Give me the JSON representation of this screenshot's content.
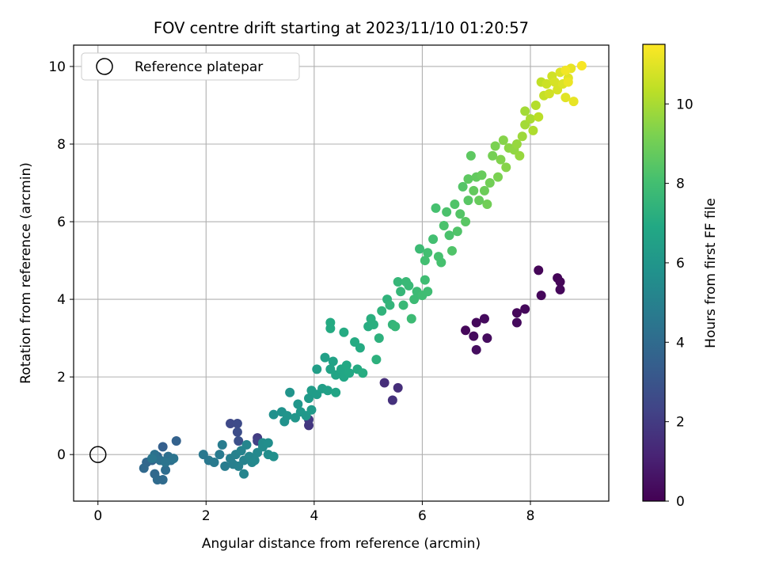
{
  "chart_data": {
    "type": "scatter",
    "title": "FOV centre drift starting at 2023/11/10 01:20:57",
    "xlabel": "Angular distance from reference (arcmin)",
    "ylabel": "Rotation from reference (arcmin)",
    "xlim": [
      -0.45,
      9.45
    ],
    "ylim": [
      -1.2,
      10.55
    ],
    "xticks": [
      0,
      2,
      4,
      6,
      8
    ],
    "yticks": [
      0,
      2,
      4,
      6,
      8,
      10
    ],
    "grid": true,
    "legend": {
      "placement": "top-left",
      "entries": [
        "Reference platepar"
      ]
    },
    "reference_point": {
      "x": 0,
      "y": 0,
      "label": "Reference platepar"
    },
    "colorbar": {
      "label": "Hours from first FF file",
      "colormap": "viridis",
      "range": [
        0,
        11.5
      ],
      "ticks": [
        0,
        2,
        4,
        6,
        8,
        10
      ]
    },
    "points": [
      [
        6.8,
        3.2,
        0.2
      ],
      [
        6.95,
        3.05,
        0.3
      ],
      [
        7.0,
        3.4,
        0.25
      ],
      [
        7.15,
        3.5,
        0.3
      ],
      [
        7.2,
        3.0,
        0.35
      ],
      [
        7.0,
        2.7,
        0.4
      ],
      [
        7.75,
        3.65,
        0.2
      ],
      [
        7.9,
        3.75,
        0.25
      ],
      [
        7.75,
        3.4,
        0.3
      ],
      [
        8.15,
        4.75,
        0.15
      ],
      [
        8.2,
        4.1,
        0.2
      ],
      [
        8.5,
        4.55,
        0.1
      ],
      [
        8.55,
        4.45,
        0.15
      ],
      [
        8.55,
        4.25,
        0.2
      ],
      [
        5.3,
        1.85,
        1.5
      ],
      [
        5.55,
        1.72,
        1.5
      ],
      [
        5.45,
        1.4,
        1.6
      ],
      [
        3.9,
        0.75,
        1.8
      ],
      [
        3.9,
        0.9,
        1.9
      ],
      [
        2.95,
        0.43,
        2.0
      ],
      [
        2.95,
        0.35,
        2.2
      ],
      [
        2.45,
        0.8,
        2.5
      ],
      [
        2.58,
        0.8,
        2.6
      ],
      [
        2.58,
        0.58,
        2.7
      ],
      [
        2.6,
        0.35,
        2.8
      ],
      [
        1.2,
        0.2,
        3.5
      ],
      [
        1.45,
        0.35,
        3.6
      ],
      [
        1.1,
        -0.05,
        3.7
      ],
      [
        1.0,
        -0.15,
        3.7
      ],
      [
        0.9,
        -0.2,
        3.8
      ],
      [
        0.85,
        -0.35,
        3.9
      ],
      [
        1.05,
        -0.5,
        3.9
      ],
      [
        1.2,
        -0.65,
        4.0
      ],
      [
        1.1,
        -0.65,
        4.0
      ],
      [
        1.25,
        -0.4,
        4.1
      ],
      [
        1.35,
        -0.15,
        4.2
      ],
      [
        1.3,
        -0.05,
        4.2
      ],
      [
        1.05,
        0.0,
        4.3
      ],
      [
        1.15,
        -0.15,
        4.3
      ],
      [
        1.25,
        -0.2,
        4.4
      ],
      [
        1.4,
        -0.1,
        4.4
      ],
      [
        1.0,
        -0.1,
        4.5
      ],
      [
        1.95,
        0.0,
        4.6
      ],
      [
        2.05,
        -0.15,
        4.6
      ],
      [
        2.15,
        -0.2,
        4.7
      ],
      [
        2.25,
        0.0,
        4.7
      ],
      [
        2.3,
        0.25,
        4.8
      ],
      [
        2.35,
        -0.3,
        4.8
      ],
      [
        2.45,
        -0.1,
        4.9
      ],
      [
        2.5,
        -0.25,
        4.9
      ],
      [
        2.55,
        0.0,
        5.0
      ],
      [
        2.6,
        -0.3,
        5.0
      ],
      [
        2.65,
        0.1,
        5.1
      ],
      [
        2.7,
        -0.15,
        5.1
      ],
      [
        2.7,
        -0.5,
        5.2
      ],
      [
        2.75,
        0.25,
        5.2
      ],
      [
        2.8,
        -0.05,
        5.3
      ],
      [
        2.85,
        -0.2,
        5.3
      ],
      [
        2.9,
        -0.15,
        5.4
      ],
      [
        2.95,
        0.05,
        5.4
      ],
      [
        3.05,
        0.3,
        5.5
      ],
      [
        3.05,
        0.2,
        5.5
      ],
      [
        3.15,
        0.3,
        5.6
      ],
      [
        3.15,
        0.0,
        5.6
      ],
      [
        3.25,
        -0.05,
        5.7
      ],
      [
        3.25,
        1.03,
        5.7
      ],
      [
        3.4,
        1.1,
        5.8
      ],
      [
        3.45,
        0.85,
        5.8
      ],
      [
        3.5,
        1.0,
        5.9
      ],
      [
        3.55,
        1.6,
        5.9
      ],
      [
        3.65,
        0.95,
        6.0
      ],
      [
        3.7,
        1.3,
        6.0
      ],
      [
        3.75,
        1.1,
        6.1
      ],
      [
        3.85,
        1.0,
        6.1
      ],
      [
        3.95,
        1.15,
        6.2
      ],
      [
        3.9,
        1.45,
        6.2
      ],
      [
        3.95,
        1.65,
        6.3
      ],
      [
        4.05,
        1.55,
        6.3
      ],
      [
        4.05,
        2.2,
        6.4
      ],
      [
        4.15,
        1.7,
        6.4
      ],
      [
        4.2,
        2.5,
        6.5
      ],
      [
        4.25,
        1.65,
        6.5
      ],
      [
        4.3,
        2.2,
        6.6
      ],
      [
        4.35,
        2.4,
        6.6
      ],
      [
        4.4,
        2.05,
        6.7
      ],
      [
        4.4,
        1.6,
        6.7
      ],
      [
        4.5,
        2.2,
        6.8
      ],
      [
        4.55,
        2.0,
        6.8
      ],
      [
        4.6,
        2.3,
        6.9
      ],
      [
        4.65,
        2.1,
        6.9
      ],
      [
        4.75,
        2.9,
        7.0
      ],
      [
        4.8,
        2.2,
        7.0
      ],
      [
        4.85,
        2.75,
        7.0
      ],
      [
        4.9,
        2.1,
        7.1
      ],
      [
        4.3,
        3.25,
        7.0
      ],
      [
        4.3,
        3.4,
        7.0
      ],
      [
        4.55,
        3.15,
        7.0
      ],
      [
        5.0,
        3.3,
        7.1
      ],
      [
        5.05,
        3.5,
        7.2
      ],
      [
        5.1,
        3.35,
        7.2
      ],
      [
        5.15,
        2.45,
        7.3
      ],
      [
        5.2,
        3.0,
        7.3
      ],
      [
        5.25,
        3.7,
        7.4
      ],
      [
        5.35,
        4.0,
        7.4
      ],
      [
        5.4,
        3.85,
        7.5
      ],
      [
        5.45,
        3.35,
        7.5
      ],
      [
        5.5,
        3.3,
        7.6
      ],
      [
        5.55,
        4.45,
        7.6
      ],
      [
        5.6,
        4.2,
        7.6
      ],
      [
        5.65,
        3.85,
        7.7
      ],
      [
        5.7,
        4.45,
        7.7
      ],
      [
        5.75,
        4.35,
        7.7
      ],
      [
        5.8,
        3.5,
        7.8
      ],
      [
        5.85,
        4.0,
        7.8
      ],
      [
        5.9,
        4.2,
        7.8
      ],
      [
        5.95,
        5.3,
        7.8
      ],
      [
        6.0,
        4.1,
        7.9
      ],
      [
        6.05,
        4.5,
        7.9
      ],
      [
        6.1,
        4.2,
        7.9
      ],
      [
        6.05,
        5.0,
        8.0
      ],
      [
        6.1,
        5.2,
        8.0
      ],
      [
        6.2,
        5.55,
        8.0
      ],
      [
        6.25,
        6.35,
        8.1
      ],
      [
        6.3,
        5.1,
        8.1
      ],
      [
        6.35,
        4.95,
        8.1
      ],
      [
        6.4,
        5.9,
        8.2
      ],
      [
        6.45,
        6.25,
        8.2
      ],
      [
        6.5,
        5.65,
        8.2
      ],
      [
        6.55,
        5.25,
        8.3
      ],
      [
        6.6,
        6.45,
        8.3
      ],
      [
        6.65,
        5.75,
        8.3
      ],
      [
        6.7,
        6.2,
        8.4
      ],
      [
        6.75,
        6.9,
        8.4
      ],
      [
        6.8,
        6.0,
        8.5
      ],
      [
        6.85,
        6.55,
        8.5
      ],
      [
        6.85,
        7.1,
        8.6
      ],
      [
        6.9,
        7.7,
        8.6
      ],
      [
        6.95,
        6.8,
        8.7
      ],
      [
        7.0,
        7.15,
        8.7
      ],
      [
        7.05,
        6.55,
        8.8
      ],
      [
        7.1,
        7.2,
        8.8
      ],
      [
        7.15,
        6.8,
        8.9
      ],
      [
        7.2,
        6.45,
        9.0
      ],
      [
        7.25,
        7.0,
        9.0
      ],
      [
        7.3,
        7.7,
        9.1
      ],
      [
        7.35,
        7.95,
        9.2
      ],
      [
        7.4,
        7.15,
        9.2
      ],
      [
        7.45,
        7.6,
        9.3
      ],
      [
        7.5,
        8.1,
        9.4
      ],
      [
        7.55,
        7.4,
        9.4
      ],
      [
        7.6,
        7.9,
        9.5
      ],
      [
        7.7,
        7.85,
        9.6
      ],
      [
        7.75,
        8.0,
        9.7
      ],
      [
        7.8,
        7.7,
        9.7
      ],
      [
        7.85,
        8.2,
        9.8
      ],
      [
        7.9,
        8.5,
        9.9
      ],
      [
        7.9,
        8.85,
        9.9
      ],
      [
        8.0,
        8.65,
        10.0
      ],
      [
        8.05,
        8.35,
        10.1
      ],
      [
        8.1,
        9.0,
        10.2
      ],
      [
        8.15,
        8.7,
        10.3
      ],
      [
        8.2,
        9.6,
        10.4
      ],
      [
        8.25,
        9.25,
        10.5
      ],
      [
        8.3,
        9.55,
        10.6
      ],
      [
        8.35,
        9.3,
        10.7
      ],
      [
        8.4,
        9.75,
        10.7
      ],
      [
        8.45,
        9.6,
        10.8
      ],
      [
        8.5,
        9.4,
        10.8
      ],
      [
        8.55,
        9.85,
        10.9
      ],
      [
        8.6,
        9.55,
        10.9
      ],
      [
        8.65,
        9.2,
        11.0
      ],
      [
        8.7,
        9.7,
        11.0
      ],
      [
        8.75,
        9.95,
        11.1
      ],
      [
        8.8,
        9.1,
        11.1
      ],
      [
        8.7,
        9.6,
        11.2
      ],
      [
        8.65,
        9.9,
        11.3
      ],
      [
        8.95,
        10.02,
        11.4
      ]
    ]
  }
}
